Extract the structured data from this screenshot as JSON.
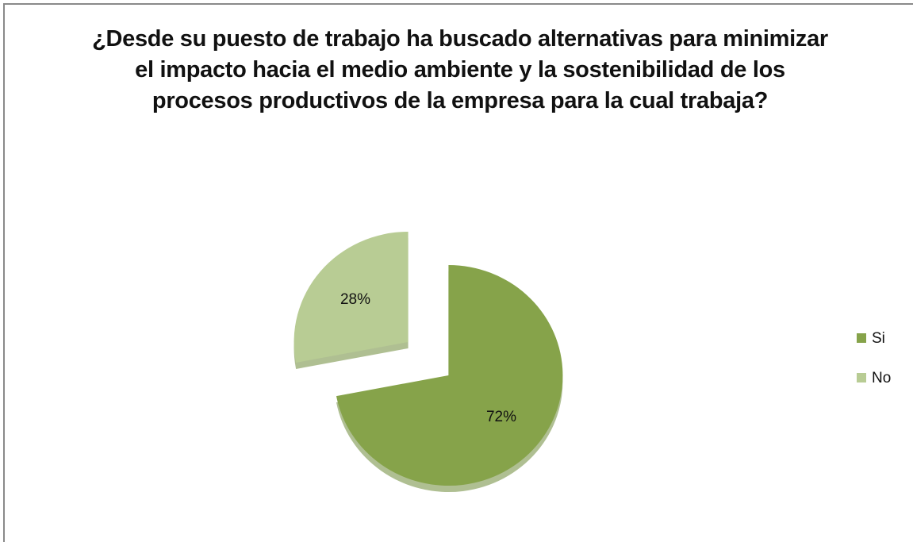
{
  "chart_data": {
    "type": "pie",
    "title": "¿Desde su puesto de trabajo ha buscado alternativas para minimizar el impacto hacia el medio ambiente y la sostenibilidad de los procesos productivos de la empresa para la cual trabaja?",
    "categories": [
      "Si",
      "No"
    ],
    "values": [
      72,
      28
    ],
    "value_labels": [
      "72%",
      "28%"
    ],
    "colors": [
      "#86a34a",
      "#b8cc94"
    ],
    "legend": "right"
  }
}
